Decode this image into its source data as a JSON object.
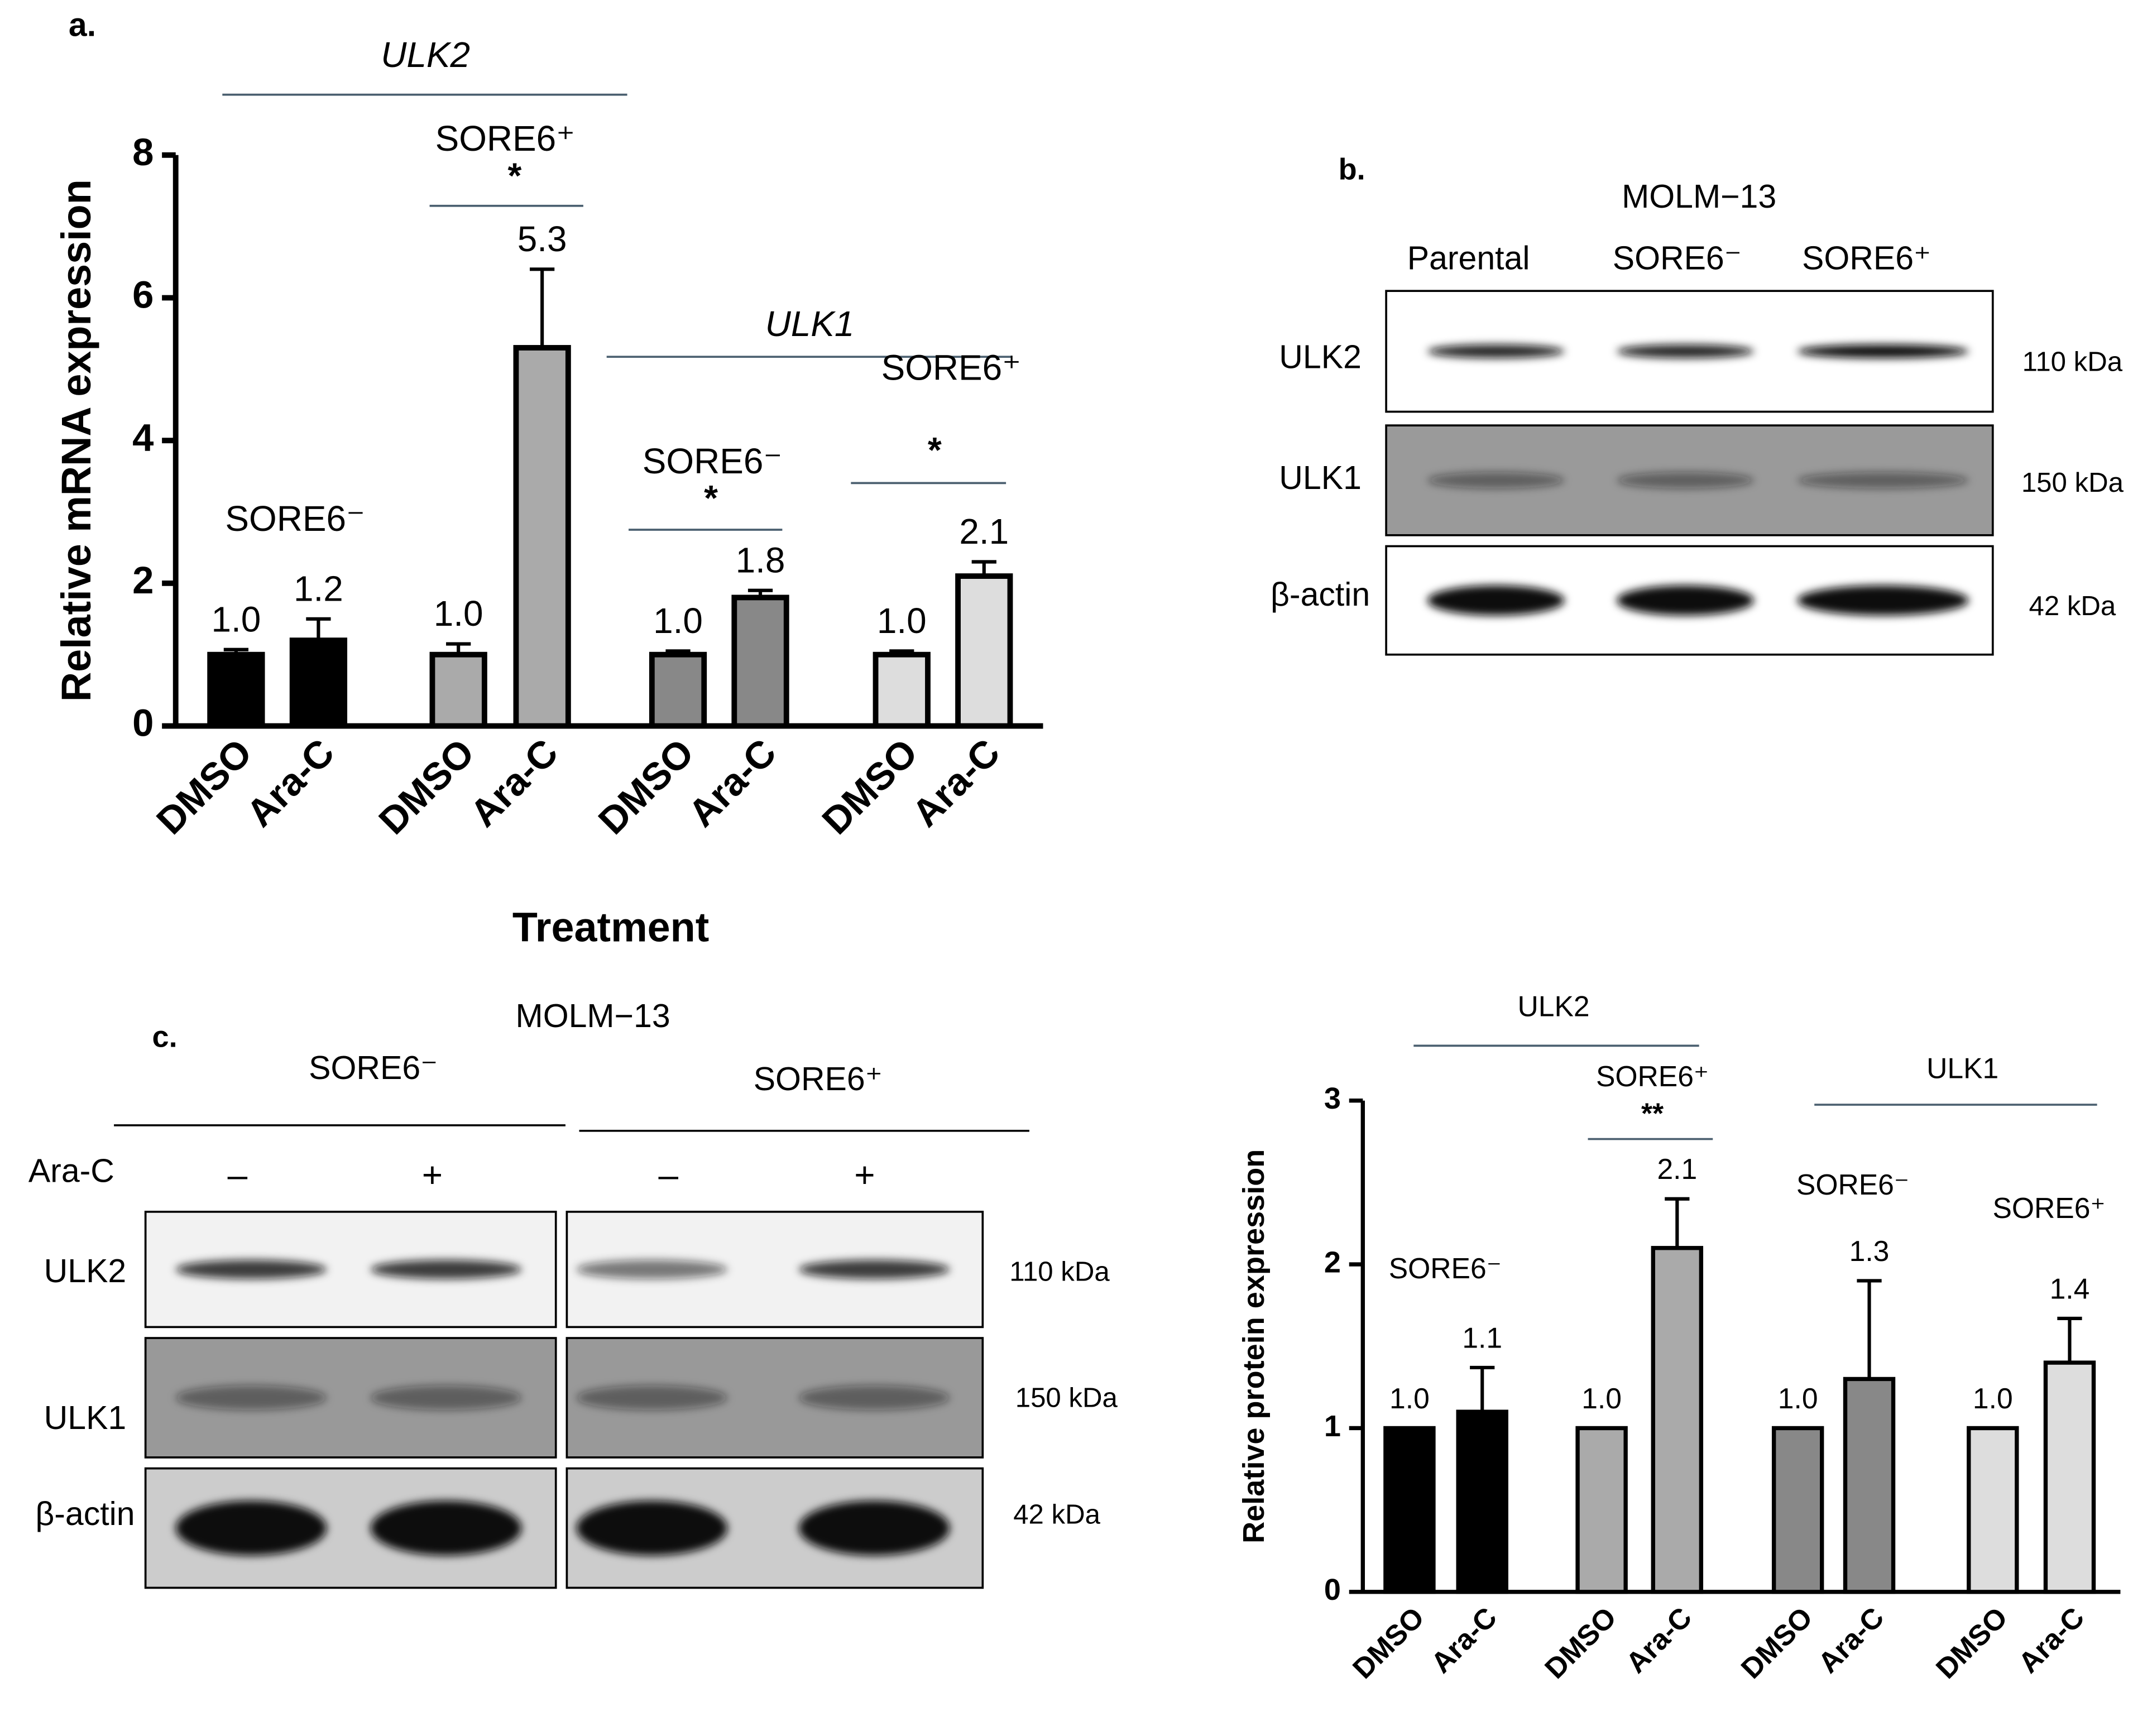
{
  "chart_data": [
    {
      "type": "bar",
      "panel_label": "a.",
      "ylabel": "Relative mRNA expression",
      "xlabel": "Treatment",
      "categories": [
        "DMSO",
        "Ara-C",
        "DMSO",
        "Ara-C",
        "DMSO",
        "Ara-C",
        "DMSO",
        "Ara-C"
      ],
      "values": [
        1.0,
        1.2,
        1.0,
        5.3,
        1.0,
        1.8,
        1.0,
        2.1
      ],
      "value_labels": [
        "1.0",
        "1.2",
        "1.0",
        "5.3",
        "1.0",
        "1.8",
        "1.0",
        "2.1"
      ],
      "errors": [
        0.07,
        0.3,
        0.15,
        1.1,
        0.05,
        0.1,
        0.05,
        0.2
      ],
      "colors": [
        "#000000",
        "#000000",
        "#aaaaaa",
        "#aaaaaa",
        "#888888",
        "#888888",
        "#dddddd",
        "#dddddd"
      ],
      "ylim": [
        0,
        8
      ],
      "yticks": [
        0,
        2,
        4,
        6,
        8
      ],
      "annotations": [
        {
          "label": "ULK2"
        },
        {
          "label": "SORE6⁺",
          "sig": "*"
        },
        {
          "label": "ULK1"
        },
        {
          "label": "SORE6⁻",
          "sig": "*"
        },
        {
          "label": "SORE6⁺",
          "sig": "*"
        },
        {
          "label": "SORE6⁻"
        }
      ]
    },
    {
      "type": "bar",
      "ylabel": "Relative protein expression",
      "categories": [
        "DMSO",
        "Ara-C",
        "DMSO",
        "Ara-C",
        "DMSO",
        "Ara-C",
        "DMSO",
        "Ara-C"
      ],
      "values": [
        1.0,
        1.1,
        1.0,
        2.1,
        1.0,
        1.3,
        1.0,
        1.4
      ],
      "value_labels": [
        "1.0",
        "1.1",
        "1.0",
        "2.1",
        "1.0",
        "1.3",
        "1.0",
        "1.4"
      ],
      "errors": [
        0,
        0.27,
        0,
        0.3,
        0,
        0.6,
        0,
        0.27
      ],
      "colors": [
        "#000000",
        "#000000",
        "#aaaaaa",
        "#aaaaaa",
        "#888888",
        "#888888",
        "#dddddd",
        "#dddddd"
      ],
      "ylim": [
        0,
        3
      ],
      "yticks": [
        0,
        1,
        2,
        3
      ],
      "annotations": [
        {
          "label": "ULK2"
        },
        {
          "label": "SORE6⁺",
          "sig": "**"
        },
        {
          "label": "ULK1"
        },
        {
          "label": "SORE6⁻"
        },
        {
          "label": "SORE6⁻"
        },
        {
          "label": "SORE6⁺"
        }
      ]
    }
  ],
  "blots": [
    {
      "panel_label": "b.",
      "cell_line": "MOLM−13",
      "lanes": [
        "Parental",
        "SORE6⁻",
        "SORE6⁺"
      ],
      "rows": [
        {
          "protein": "ULK2",
          "size": "110 kDa"
        },
        {
          "protein": "ULK1",
          "size": "150 kDa"
        },
        {
          "protein": "β-actin",
          "size": "42 kDa"
        }
      ]
    },
    {
      "panel_label": "c.",
      "cell_line": "MOLM−13",
      "groups": [
        "SORE6⁻",
        "SORE6⁺"
      ],
      "treatment": "Ara-C",
      "lanes": [
        "–",
        "+",
        "–",
        "+"
      ],
      "rows": [
        {
          "protein": "ULK2",
          "size": "110 kDa"
        },
        {
          "protein": "ULK1",
          "size": "150 kDa"
        },
        {
          "protein": "β-actin",
          "size": "42 kDa"
        }
      ]
    }
  ]
}
